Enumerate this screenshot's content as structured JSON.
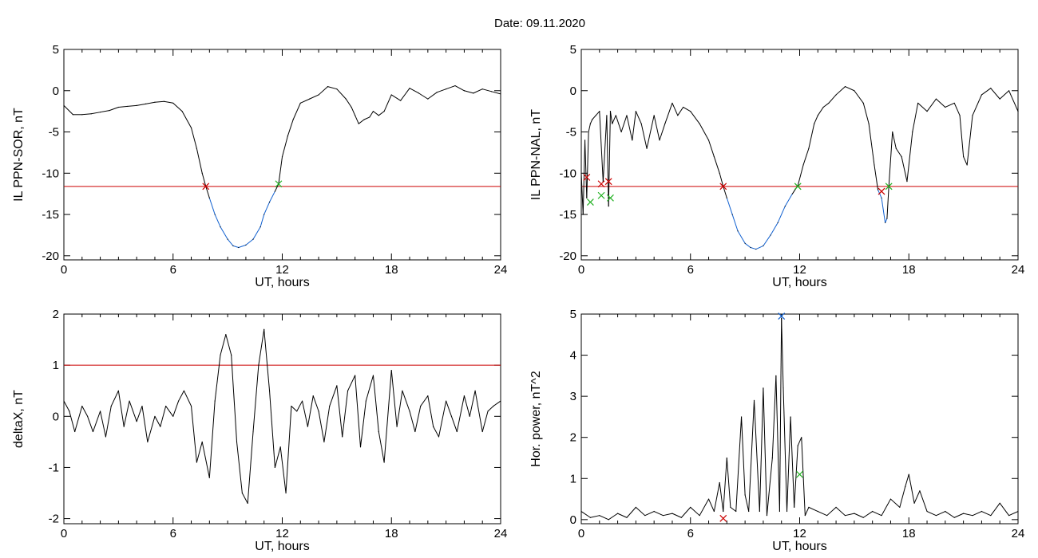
{
  "title": "Date:  09.11.2020",
  "colors": {
    "trace": "#000000",
    "threshold": "#cc0000",
    "below": "#1060d0",
    "start_marker": "#cc0000",
    "end_marker": "#20b020",
    "peak_marker": "#1060d0"
  },
  "chart_data": [
    {
      "type": "line",
      "xlabel": "UT, hours",
      "ylabel": "IL PPN-SOR, nT",
      "xlim": [
        0,
        24
      ],
      "ylim": [
        -20.5,
        5
      ],
      "xticks": [
        0,
        6,
        12,
        18,
        24
      ],
      "yticks": [
        5,
        0,
        -5,
        -10,
        -15,
        -20
      ],
      "threshold": -11.6,
      "grid": false,
      "series": [
        {
          "x": [
            0,
            0.5,
            1,
            1.5,
            2,
            2.5,
            3,
            3.5,
            4,
            4.5,
            5,
            5.5,
            6,
            6.5,
            7,
            7.3,
            7.6,
            7.8,
            8,
            8.3,
            8.6,
            9,
            9.3,
            9.6,
            10,
            10.4,
            10.8,
            11,
            11.3,
            11.6,
            11.8,
            12,
            12.3,
            12.6,
            13,
            13.5,
            14,
            14.5,
            15,
            15.5,
            15.8,
            16,
            16.2,
            16.5,
            16.8,
            17,
            17.3,
            17.6,
            18,
            18.5,
            19,
            19.5,
            20,
            20.5,
            21,
            21.5,
            22,
            22.5,
            23,
            23.5,
            24
          ],
          "y": [
            -1.8,
            -2.9,
            -2.9,
            -2.8,
            -2.6,
            -2.4,
            -2.0,
            -1.9,
            -1.8,
            -1.6,
            -1.4,
            -1.3,
            -1.5,
            -2.5,
            -4.5,
            -7,
            -10,
            -11.6,
            -13,
            -15,
            -16.5,
            -18,
            -18.8,
            -19,
            -18.7,
            -18,
            -16.5,
            -15,
            -13.5,
            -12.2,
            -11.3,
            -8,
            -5.5,
            -3.5,
            -1.5,
            -1,
            -0.5,
            0.5,
            0.2,
            -1,
            -2,
            -3,
            -4,
            -3.5,
            -3.2,
            -2.5,
            -3,
            -2.5,
            -0.5,
            -1.2,
            0.3,
            -0.3,
            -1,
            -0.2,
            0.2,
            0.6,
            0.0,
            -0.3,
            0.2,
            -0.1,
            -0.4
          ]
        }
      ],
      "markers": [
        {
          "x": 7.8,
          "y": -11.6,
          "kind": "start"
        },
        {
          "x": 11.8,
          "y": -11.3,
          "kind": "end"
        }
      ]
    },
    {
      "type": "line",
      "xlabel": "UT, hours",
      "ylabel": "IL PPN-NAL, nT",
      "xlim": [
        0,
        24
      ],
      "ylim": [
        -20.5,
        5
      ],
      "xticks": [
        0,
        6,
        12,
        18,
        24
      ],
      "yticks": [
        5,
        0,
        -5,
        -10,
        -15,
        -20
      ],
      "threshold": -11.6,
      "grid": false,
      "series": [
        {
          "x": [
            0,
            0.1,
            0.2,
            0.3,
            0.4,
            0.5,
            0.6,
            0.8,
            1.0,
            1.2,
            1.4,
            1.5,
            1.6,
            1.7,
            1.9,
            2.2,
            2.5,
            2.8,
            3.0,
            3.3,
            3.6,
            4.0,
            4.3,
            4.6,
            5.0,
            5.3,
            5.6,
            6.0,
            6.5,
            7.0,
            7.3,
            7.6,
            7.8,
            8.0,
            8.3,
            8.6,
            9.0,
            9.3,
            9.6,
            10.0,
            10.4,
            10.8,
            11.2,
            11.6,
            11.9,
            12.2,
            12.5,
            12.8,
            13.0,
            13.3,
            13.6,
            14.0,
            14.5,
            15.0,
            15.5,
            15.8,
            16.1,
            16.3,
            16.5,
            16.7,
            16.8,
            16.9,
            17.1,
            17.3,
            17.6,
            17.9,
            18.2,
            18.5,
            19.0,
            19.5,
            20.0,
            20.5,
            20.8,
            21.0,
            21.2,
            21.5,
            22.0,
            22.5,
            23.0,
            23.5,
            24
          ],
          "y": [
            -10,
            -15,
            -6,
            -13,
            -5,
            -4,
            -3.5,
            -3,
            -2.5,
            -11,
            -3,
            -14,
            -2.5,
            -4,
            -3,
            -5,
            -3,
            -6,
            -2.5,
            -4,
            -7,
            -3,
            -6,
            -4,
            -1.5,
            -3,
            -2,
            -2.5,
            -4,
            -6,
            -8,
            -10,
            -11.6,
            -13,
            -15,
            -17,
            -18.5,
            -19,
            -19.2,
            -18.8,
            -17.5,
            -16,
            -14,
            -12.5,
            -11.5,
            -9,
            -7,
            -4,
            -3,
            -2,
            -1.5,
            -0.5,
            0.5,
            0,
            -1.5,
            -4,
            -9,
            -12,
            -13,
            -16,
            -15.5,
            -11.6,
            -5,
            -7,
            -8,
            -11,
            -5,
            -1.5,
            -2.5,
            -1,
            -2,
            -1.5,
            -3,
            -8,
            -9,
            -3,
            -0.5,
            0.3,
            -1,
            0,
            -2.5
          ]
        }
      ],
      "markers": [
        {
          "x": 0.3,
          "y": -10.5,
          "kind": "start"
        },
        {
          "x": 0.5,
          "y": -13.5,
          "kind": "end"
        },
        {
          "x": 1.1,
          "y": -11.3,
          "kind": "start"
        },
        {
          "x": 1.1,
          "y": -12.7,
          "kind": "end"
        },
        {
          "x": 1.5,
          "y": -11.0,
          "kind": "start"
        },
        {
          "x": 1.6,
          "y": -13.0,
          "kind": "end"
        },
        {
          "x": 7.8,
          "y": -11.6,
          "kind": "start"
        },
        {
          "x": 11.9,
          "y": -11.6,
          "kind": "end"
        },
        {
          "x": 16.5,
          "y": -12.2,
          "kind": "start"
        },
        {
          "x": 16.9,
          "y": -11.6,
          "kind": "end"
        }
      ]
    },
    {
      "type": "line",
      "xlabel": "UT, hours",
      "ylabel": "deltaX, nT",
      "xlim": [
        0,
        24
      ],
      "ylim": [
        -2.1,
        2
      ],
      "xticks": [
        0,
        6,
        12,
        18,
        24
      ],
      "yticks": [
        2,
        1,
        0,
        -1,
        -2
      ],
      "threshold": 1.0,
      "grid": false,
      "series": [
        {
          "x": [
            0,
            0.3,
            0.6,
            1.0,
            1.3,
            1.6,
            2.0,
            2.3,
            2.6,
            3.0,
            3.3,
            3.6,
            4.0,
            4.3,
            4.6,
            5.0,
            5.3,
            5.6,
            6.0,
            6.3,
            6.6,
            7.0,
            7.3,
            7.6,
            8.0,
            8.3,
            8.6,
            8.9,
            9.2,
            9.5,
            9.8,
            10.1,
            10.4,
            10.7,
            11.0,
            11.3,
            11.6,
            11.9,
            12.2,
            12.5,
            12.8,
            13.1,
            13.4,
            13.7,
            14.0,
            14.3,
            14.6,
            15.0,
            15.3,
            15.6,
            16.0,
            16.3,
            16.6,
            17.0,
            17.3,
            17.6,
            18.0,
            18.3,
            18.6,
            19.0,
            19.3,
            19.6,
            20.0,
            20.3,
            20.6,
            21.0,
            21.3,
            21.6,
            22.0,
            22.3,
            22.6,
            23.0,
            23.3,
            23.6,
            24
          ],
          "y": [
            0.3,
            0.1,
            -0.3,
            0.2,
            0.0,
            -0.3,
            0.1,
            -0.4,
            0.2,
            0.5,
            -0.2,
            0.3,
            -0.1,
            0.2,
            -0.5,
            0.0,
            -0.2,
            0.2,
            0.0,
            0.3,
            0.5,
            0.2,
            -0.9,
            -0.5,
            -1.2,
            0.3,
            1.2,
            1.6,
            1.2,
            -0.5,
            -1.5,
            -1.7,
            -0.3,
            1.0,
            1.7,
            0.5,
            -1.0,
            -0.6,
            -1.5,
            0.2,
            0.1,
            0.3,
            -0.2,
            0.4,
            0.1,
            -0.5,
            0.2,
            0.6,
            -0.4,
            0.5,
            0.8,
            -0.6,
            0.3,
            0.8,
            -0.3,
            -0.9,
            0.9,
            -0.2,
            0.5,
            0.1,
            -0.3,
            0.2,
            0.4,
            -0.2,
            -0.4,
            0.3,
            0.0,
            -0.3,
            0.4,
            0.0,
            0.5,
            -0.3,
            0.1,
            0.2,
            0.3
          ]
        }
      ],
      "markers": []
    },
    {
      "type": "line",
      "xlabel": "UT, hours",
      "ylabel": "Hor. power, nT^2",
      "xlim": [
        0,
        24
      ],
      "ylim": [
        -0.1,
        5
      ],
      "xticks": [
        0,
        6,
        12,
        18,
        24
      ],
      "yticks": [
        5,
        4,
        3,
        2,
        1,
        0
      ],
      "threshold": null,
      "grid": false,
      "series": [
        {
          "x": [
            0,
            0.5,
            1,
            1.5,
            2,
            2.5,
            3,
            3.5,
            4,
            4.5,
            5,
            5.5,
            6,
            6.5,
            7,
            7.3,
            7.6,
            7.8,
            8.0,
            8.2,
            8.5,
            8.8,
            9.0,
            9.2,
            9.5,
            9.8,
            10.0,
            10.2,
            10.5,
            10.7,
            10.9,
            11.0,
            11.1,
            11.3,
            11.5,
            11.7,
            11.9,
            12.1,
            12.3,
            12.5,
            13,
            13.5,
            14,
            14.5,
            15,
            15.5,
            16,
            16.5,
            17,
            17.5,
            17.8,
            18.0,
            18.3,
            18.6,
            19,
            19.5,
            20,
            20.5,
            21,
            21.5,
            22,
            22.5,
            23,
            23.5,
            24
          ],
          "y": [
            0.2,
            0.05,
            0.1,
            0.0,
            0.15,
            0.05,
            0.3,
            0.1,
            0.2,
            0.1,
            0.15,
            0.05,
            0.3,
            0.1,
            0.5,
            0.2,
            0.9,
            0.2,
            1.5,
            0.3,
            0.2,
            2.5,
            0.6,
            0.2,
            2.9,
            0.2,
            3.2,
            0.1,
            1.5,
            3.5,
            0.2,
            4.9,
            3.2,
            0.2,
            2.5,
            0.3,
            1.8,
            2.0,
            0.1,
            0.3,
            0.2,
            0.1,
            0.3,
            0.1,
            0.15,
            0.05,
            0.2,
            0.1,
            0.5,
            0.3,
            0.8,
            1.1,
            0.4,
            0.7,
            0.2,
            0.1,
            0.2,
            0.05,
            0.15,
            0.1,
            0.2,
            0.1,
            0.4,
            0.1,
            0.2
          ]
        }
      ],
      "markers": [
        {
          "x": 7.8,
          "y": 0.03,
          "kind": "start"
        },
        {
          "x": 11.0,
          "y": 4.95,
          "kind": "peak"
        },
        {
          "x": 12.0,
          "y": 1.1,
          "kind": "end"
        }
      ]
    }
  ]
}
